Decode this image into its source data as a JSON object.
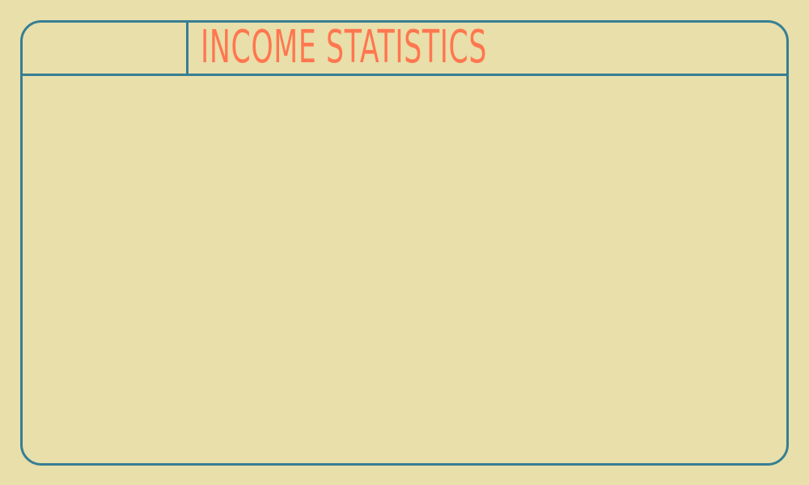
{
  "header": {
    "title": "INCOME STATISTICS"
  },
  "colors": {
    "background": "#E8DFAA",
    "border": "#367E94",
    "title": "#FF774F"
  }
}
